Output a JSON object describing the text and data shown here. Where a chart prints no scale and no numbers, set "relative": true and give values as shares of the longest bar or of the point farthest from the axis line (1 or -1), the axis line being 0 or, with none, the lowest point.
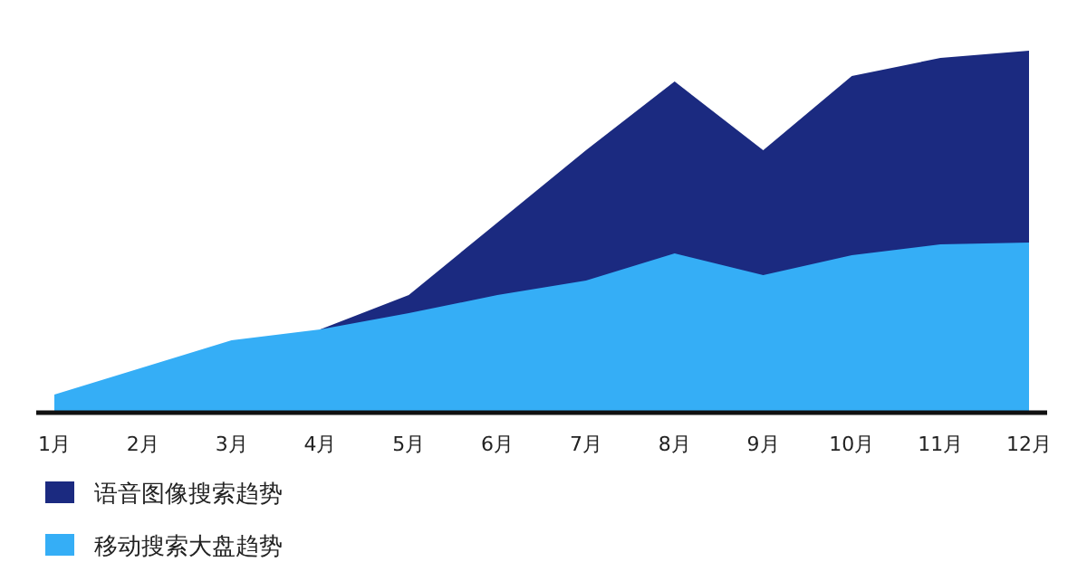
{
  "chart_data": {
    "type": "area",
    "relative": true,
    "categories": [
      "1月",
      "2月",
      "3月",
      "4月",
      "5月",
      "6月",
      "7月",
      "8月",
      "9月",
      "10月",
      "11月",
      "12月"
    ],
    "series": [
      {
        "name": "语音图像搜索趋势",
        "color": "#1b2a80",
        "values": [
          null,
          null,
          null,
          0.23,
          0.325,
          0.525,
          0.725,
          0.915,
          0.725,
          0.93,
          0.98,
          1
        ]
      },
      {
        "name": "移动搜索大盘趋势",
        "color": "#35aef6",
        "values": [
          0.05,
          0.125,
          0.2,
          0.23,
          0.275,
          0.325,
          0.365,
          0.44,
          0.38,
          0.435,
          0.465,
          0.47
        ]
      }
    ],
    "legend": "bottom left"
  }
}
